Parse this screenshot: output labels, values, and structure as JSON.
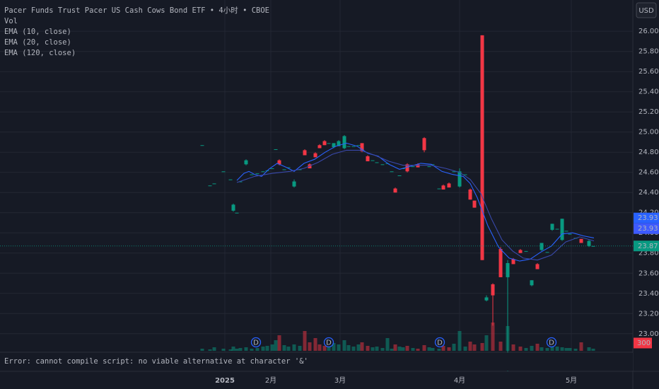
{
  "chart_data": {
    "type": "candlestick",
    "title": "Pacer Funds Trust Pacer US Cash Cows Bond ETF • 4小时 • CBOE",
    "indicators": [
      "Vol",
      "EMA (10, close)",
      "EMA (20, close)",
      "EMA (120, close)"
    ],
    "currency": "USD",
    "error": "Error: cannot compile script: no viable alternative at character '&'",
    "up_color": "#089981",
    "down_color": "#f23645",
    "xlim": [
      0,
      179
    ],
    "xticks": [
      {
        "value": 63.6,
        "label": "2025"
      },
      {
        "value": 76.6,
        "label": "2月"
      },
      {
        "value": 96.2,
        "label": "3月"
      },
      {
        "value": 130,
        "label": "4月"
      },
      {
        "value": 161.6,
        "label": "5月"
      }
    ],
    "ylim": [
      22.83,
      26.31
    ],
    "yticks": [
      {
        "value": 23,
        "label": "23.00"
      },
      {
        "value": 23.2,
        "label": "23.20"
      },
      {
        "value": 23.4,
        "label": "23.40"
      },
      {
        "value": 23.6,
        "label": "23.60"
      },
      {
        "value": 23.8,
        "label": "23.80"
      },
      {
        "value": 24,
        "label": "24.00"
      },
      {
        "value": 24.2,
        "label": "24.20"
      },
      {
        "value": 24.4,
        "label": "24.40"
      },
      {
        "value": 24.6,
        "label": "24.60"
      },
      {
        "value": 24.8,
        "label": "24.80"
      },
      {
        "value": 25,
        "label": "25.00"
      },
      {
        "value": 25.2,
        "label": "25.20"
      },
      {
        "value": 25.4,
        "label": "25.40"
      },
      {
        "value": 25.6,
        "label": "25.60"
      },
      {
        "value": 25.8,
        "label": "25.80"
      },
      {
        "value": 26,
        "label": "26.00"
      }
    ],
    "grid": true,
    "x": [
      57.2,
      59.4,
      60.6,
      63.2,
      65.2,
      66,
      67,
      68,
      69.6,
      71.2,
      72.8,
      74.4,
      75.6,
      77,
      78,
      79,
      80.4,
      81.6,
      83.2,
      84.8,
      86.2,
      87.6,
      89.2,
      90.4,
      91.8,
      93,
      94.4,
      95.8,
      97.4,
      98.6,
      100,
      101.4,
      102.4,
      104,
      105.4,
      106.6,
      108.2,
      109.6,
      110.8,
      111.8,
      113,
      114,
      115.2,
      116.8,
      118.2,
      120,
      121.4,
      122.4,
      124.2,
      125.4,
      127,
      128.4,
      130,
      131.6,
      133,
      134.2,
      136.4,
      137.6,
      139.4,
      141.6,
      143.6,
      145.2,
      147.2,
      148.8,
      150.4,
      152,
      153.2,
      154.8,
      156.2,
      157.6,
      159,
      160.2,
      161.2,
      162.8,
      164.4,
      166.6,
      167.8
    ],
    "open": [
      24.87,
      24.47,
      24.49,
      24.61,
      24.53,
      24.22,
      24.2,
      24.51,
      24.68,
      24.58,
      24.59,
      24.61,
      24.62,
      24.64,
      24.83,
      24.72,
      24.63,
      24.65,
      24.46,
      24.63,
      24.82,
      24.68,
      24.79,
      24.87,
      24.91,
      24.89,
      24.85,
      24.86,
      24.84,
      24.86,
      24.86,
      24.87,
      24.89,
      24.76,
      24.72,
      24.7,
      24.68,
      24.69,
      24.61,
      24.44,
      24.57,
      24.64,
      24.68,
      24.66,
      24.68,
      24.94,
      24.66,
      24.68,
      24.44,
      24.47,
      24.49,
      24.61,
      24.46,
      24.58,
      24.43,
      24.32,
      25.96,
      23.33,
      23.49,
      23.84,
      23.56,
      23.74,
      23.83,
      23.82,
      23.48,
      23.69,
      23.83,
      23.81,
      24.03,
      24.04,
      23.93,
      24.02,
      23.99,
      23.95,
      23.94,
      23.87,
      23.87
    ],
    "high": [
      24.87,
      24.47,
      24.49,
      24.61,
      24.53,
      24.29,
      24.2,
      24.51,
      24.73,
      24.58,
      24.59,
      24.61,
      24.62,
      24.64,
      24.83,
      24.73,
      24.63,
      24.65,
      24.53,
      24.63,
      24.83,
      24.69,
      24.8,
      24.88,
      24.92,
      24.89,
      24.89,
      24.92,
      24.97,
      24.86,
      24.86,
      24.87,
      24.89,
      24.77,
      24.72,
      24.7,
      24.68,
      24.69,
      24.61,
      24.45,
      24.57,
      24.64,
      24.69,
      24.66,
      24.69,
      24.95,
      24.66,
      24.68,
      24.44,
      24.48,
      24.5,
      24.61,
      24.64,
      24.58,
      24.44,
      24.32,
      25.96,
      23.38,
      23.5,
      23.86,
      23.73,
      23.75,
      23.84,
      23.82,
      23.53,
      23.7,
      23.9,
      23.81,
      24.09,
      24.04,
      24.14,
      24.02,
      23.99,
      23.95,
      23.94,
      23.93,
      23.87
    ],
    "low": [
      24.87,
      24.47,
      24.49,
      24.61,
      24.53,
      24.21,
      24.2,
      24.51,
      24.67,
      24.58,
      24.59,
      24.61,
      24.62,
      24.64,
      24.83,
      24.67,
      24.63,
      24.65,
      24.45,
      24.63,
      24.77,
      24.64,
      24.75,
      24.84,
      24.87,
      24.89,
      24.84,
      24.86,
      24.83,
      24.86,
      24.86,
      24.87,
      24.8,
      24.71,
      24.72,
      24.7,
      24.68,
      24.69,
      24.61,
      24.4,
      24.57,
      24.64,
      24.6,
      24.66,
      24.65,
      24.8,
      24.66,
      24.68,
      24.44,
      24.43,
      24.45,
      24.61,
      24.45,
      24.58,
      24.33,
      24.25,
      23.73,
      23.32,
      23.08,
      23.56,
      22.63,
      23.69,
      23.8,
      23.82,
      23.47,
      23.64,
      23.82,
      23.81,
      24.02,
      24.04,
      23.92,
      24.02,
      23.99,
      23.95,
      23.9,
      23.86,
      23.87
    ],
    "close": [
      24.87,
      24.47,
      24.49,
      24.61,
      24.53,
      24.28,
      24.2,
      24.51,
      24.72,
      24.58,
      24.59,
      24.61,
      24.62,
      24.64,
      24.83,
      24.68,
      24.63,
      24.65,
      24.51,
      24.63,
      24.77,
      24.64,
      24.75,
      24.84,
      24.87,
      24.89,
      24.89,
      24.91,
      24.96,
      24.86,
      24.86,
      24.87,
      24.81,
      24.71,
      24.72,
      24.7,
      24.68,
      24.69,
      24.61,
      24.4,
      24.57,
      24.64,
      24.61,
      24.66,
      24.65,
      24.82,
      24.66,
      24.68,
      24.44,
      24.43,
      24.45,
      24.61,
      24.61,
      24.58,
      24.33,
      24.25,
      23.73,
      23.36,
      23.38,
      23.56,
      23.7,
      23.69,
      23.8,
      23.82,
      23.53,
      23.64,
      23.9,
      23.81,
      24.09,
      24.04,
      24.14,
      24.02,
      23.99,
      23.95,
      23.9,
      23.92,
      23.87
    ],
    "volume": [
      300,
      200,
      500,
      300,
      200,
      600,
      300,
      400,
      500,
      300,
      400,
      600,
      700,
      900,
      1500,
      2200,
      800,
      600,
      900,
      700,
      2800,
      1200,
      1800,
      900,
      700,
      600,
      1100,
      900,
      1500,
      800,
      600,
      900,
      1200,
      700,
      500,
      600,
      400,
      1800,
      300,
      900,
      600,
      500,
      700,
      400,
      300,
      800,
      500,
      400,
      300,
      700,
      500,
      1000,
      2800,
      600,
      1300,
      900,
      1100,
      2200,
      4000,
      1300,
      3500,
      900,
      600,
      400,
      700,
      1000,
      500,
      400,
      800,
      600,
      500,
      400,
      400,
      300,
      1200,
      500,
      300
    ],
    "volume_lim": [
      0,
      10000
    ],
    "volume_label": 300,
    "ema_lines": [
      {
        "color": "#2962ff",
        "x": [
          67,
          69,
          70.4,
          72,
          74,
          76,
          78.4,
          81,
          83.2,
          86,
          89,
          92,
          95,
          98,
          101,
          104,
          107,
          110,
          113,
          116,
          119,
          122,
          125,
          128,
          131,
          133,
          135,
          138,
          141,
          144,
          147,
          150,
          153,
          156,
          159,
          162,
          165,
          168
        ],
        "values": [
          24.52,
          24.59,
          24.61,
          24.58,
          24.56,
          24.63,
          24.69,
          24.65,
          24.61,
          24.69,
          24.73,
          24.8,
          24.86,
          24.89,
          24.86,
          24.79,
          24.76,
          24.68,
          24.63,
          24.66,
          24.69,
          24.68,
          24.61,
          24.58,
          24.56,
          24.49,
          24.35,
          24.07,
          23.86,
          23.75,
          23.72,
          23.74,
          23.81,
          23.87,
          23.99,
          24,
          23.97,
          23.95
        ]
      },
      {
        "color": "#3949ab",
        "x": [
          67,
          72,
          77,
          82,
          86,
          90,
          94,
          98,
          102,
          106,
          110,
          114,
          118,
          122,
          126,
          130,
          133,
          136,
          139,
          142,
          145,
          148,
          152,
          156,
          160,
          164,
          168
        ],
        "values": [
          24.5,
          24.56,
          24.59,
          24.61,
          24.64,
          24.7,
          24.78,
          24.82,
          24.82,
          24.77,
          24.71,
          24.67,
          24.67,
          24.67,
          24.64,
          24.6,
          24.53,
          24.39,
          24.14,
          23.93,
          23.82,
          23.75,
          23.73,
          23.78,
          23.91,
          23.96,
          23.92
        ]
      }
    ],
    "price_labels": [
      {
        "value": 23.93,
        "color": "#2962ff"
      },
      {
        "value": 23.93,
        "color": "#3d5afe"
      },
      {
        "value": 23.87,
        "color": "#089981"
      }
    ],
    "dividends": {
      "label": "D",
      "x": [
        72.4,
        93,
        124.4,
        156
      ]
    }
  }
}
